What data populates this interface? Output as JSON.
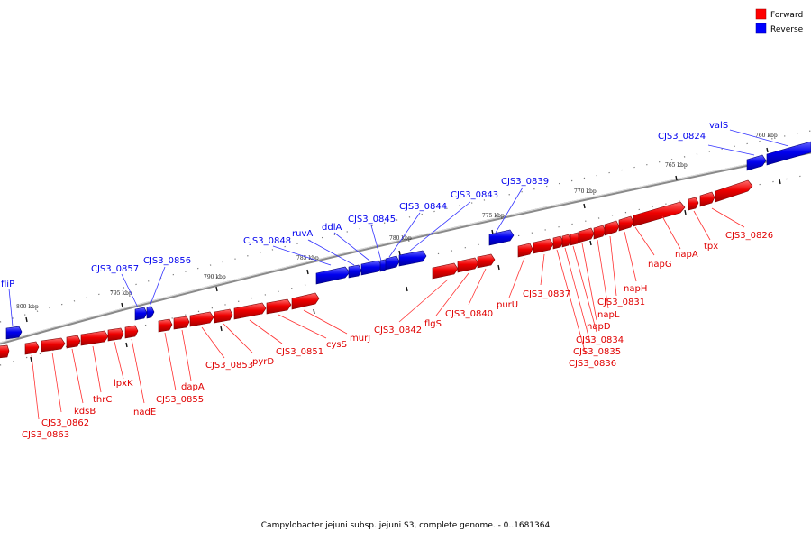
{
  "legend": [
    {
      "label": "Forward",
      "color": "#ff0000"
    },
    {
      "label": "Reverse",
      "color": "#0000ff"
    }
  ],
  "caption": "Campylobacter jejuni subsp. jejuni S3, complete genome. - 0..1681364",
  "backbone_ticks": [
    "800 kbp",
    "795 kbp",
    "790 kbp",
    "785 kbp",
    "780 kbp",
    "775 kbp",
    "770 kbp",
    "765 kbp",
    "760 kbp"
  ],
  "forward_labels": [
    "CJS3_0863",
    "CJS3_0862",
    "kdsB",
    "thrC",
    "lpxK",
    "nadE",
    "CJS3_0855",
    "dapA",
    "CJS3_0853",
    "pyrD",
    "CJS3_0851",
    "cysS",
    "murJ",
    "CJS3_0842",
    "flgS",
    "CJS3_0840",
    "purU",
    "CJS3_0837",
    "CJS3_0836",
    "CJS3_0835",
    "CJS3_0834",
    "napD",
    "napL",
    "CJS3_0831",
    "napH",
    "napG",
    "napA",
    "tpx",
    "CJS3_0826"
  ],
  "reverse_labels": [
    "fliP",
    "CJS3_0857",
    "CJS3_0856",
    "CJS3_0848",
    "ruvA",
    "ddlA",
    "CJS3_0845",
    "CJS3_0844",
    "CJS3_0843",
    "CJS3_0839",
    "CJS3_0824",
    "valS"
  ]
}
